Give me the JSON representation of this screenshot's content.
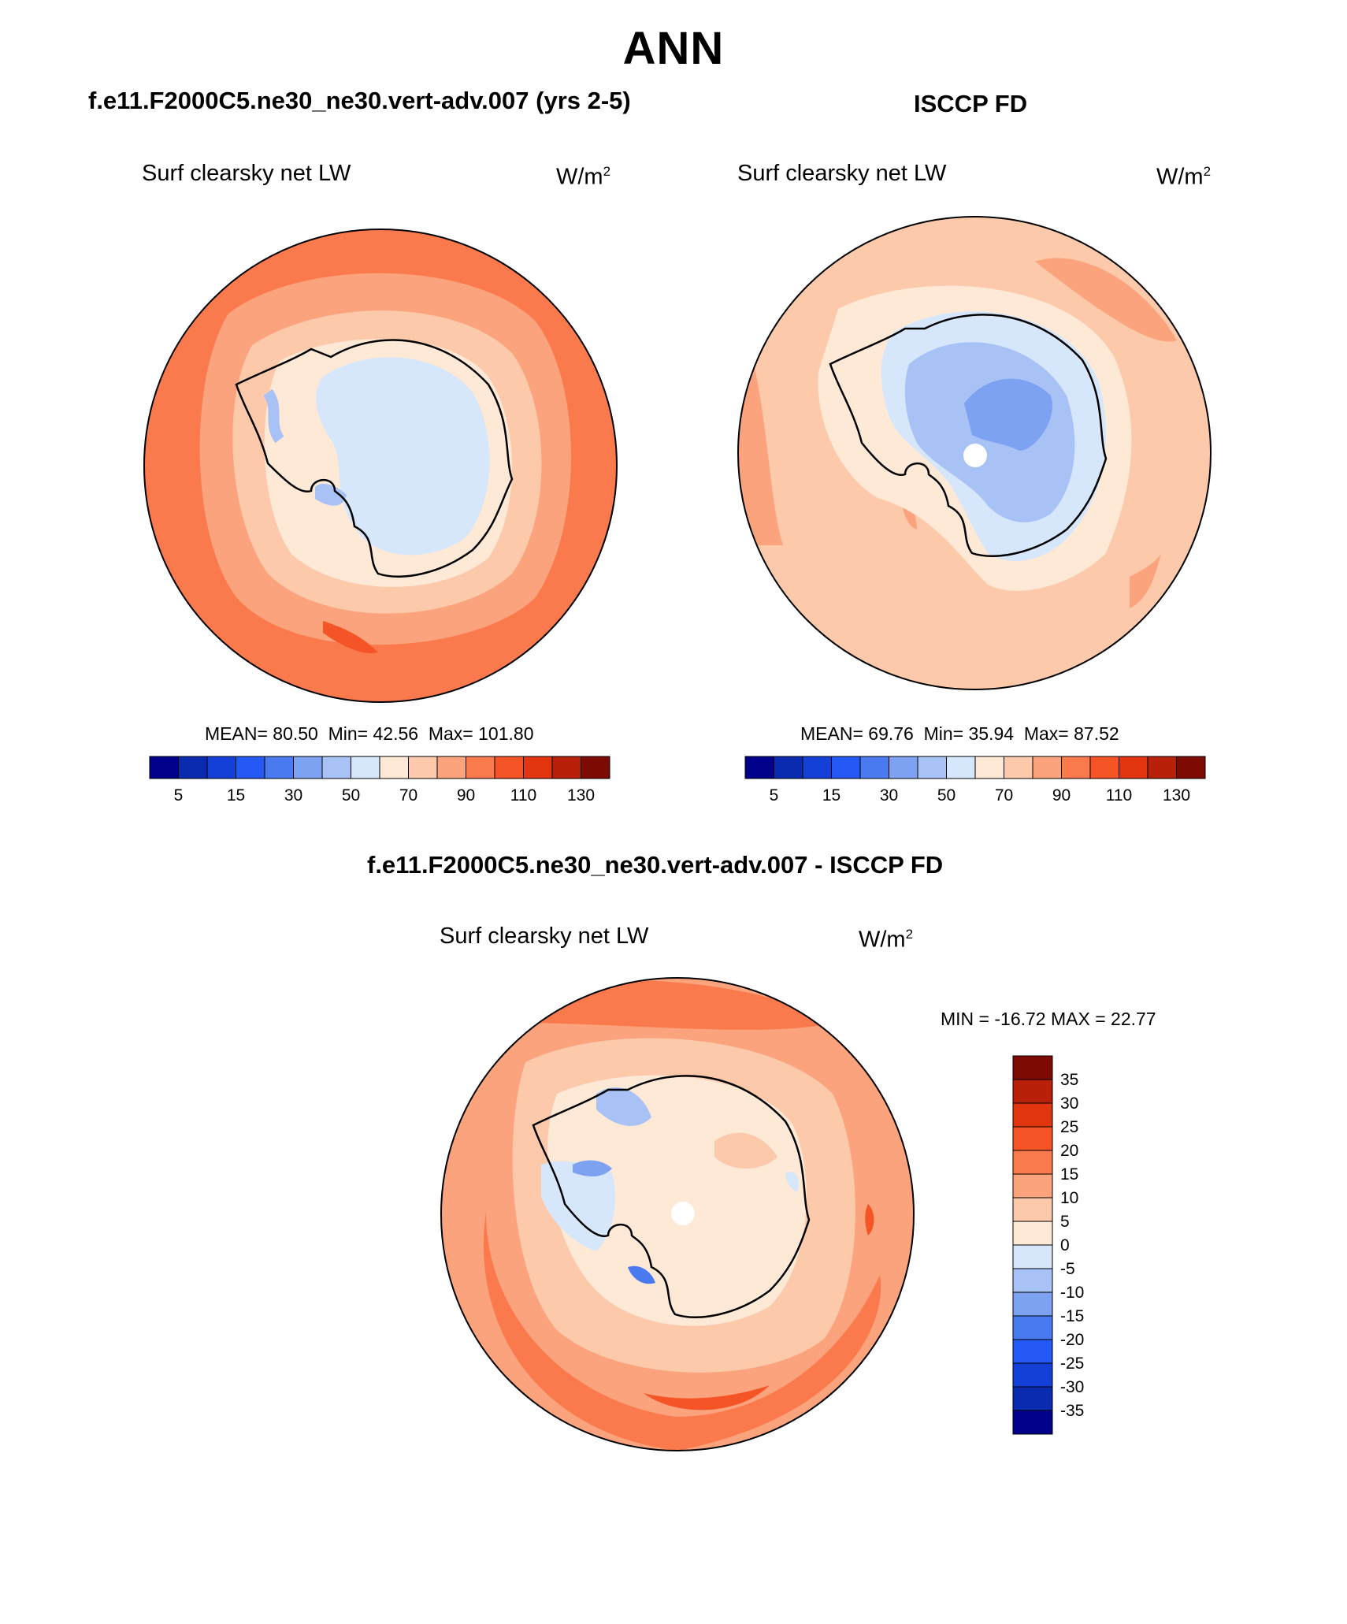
{
  "title": "ANN",
  "panels": {
    "model": {
      "case_title": "f.e11.F2000C5.ne30_ne30.vert-adv.007 (yrs 2-5)",
      "variable": "Surf clearsky net LW",
      "units_base": "W/m",
      "units_exp": "2",
      "mean_label": "MEAN=",
      "mean": "80.50",
      "min_label": "Min=",
      "min": "42.56",
      "max_label": "Max=",
      "max": "101.80"
    },
    "obs": {
      "case_title": "ISCCP FD",
      "variable": "Surf clearsky net LW",
      "units_base": "W/m",
      "units_exp": "2",
      "mean_label": "MEAN=",
      "mean": "69.76",
      "min_label": "Min=",
      "min": "35.94",
      "max_label": "Max=",
      "max": "87.52"
    },
    "diff": {
      "case_title": "f.e11.F2000C5.ne30_ne30.vert-adv.007 - ISCCP FD",
      "variable": "Surf clearsky net LW",
      "units_base": "W/m",
      "units_exp": "2",
      "minmax_text": "MIN = -16.72 MAX =  22.77"
    }
  },
  "colorbars": {
    "main_colors": [
      "#00008b",
      "#0a2bb0",
      "#1540d8",
      "#2459f5",
      "#4a7af0",
      "#7ea2f2",
      "#a9c2f5",
      "#d6e7fb",
      "#fde9d6",
      "#fcc9ab",
      "#fba37c",
      "#fa7a4d",
      "#f55426",
      "#e0350f",
      "#b82009",
      "#7d0a03"
    ],
    "main_ticks": [
      "5",
      "15",
      "30",
      "50",
      "70",
      "90",
      "110",
      "130"
    ],
    "diff_colors": [
      "#00008b",
      "#0a2bb0",
      "#1540d8",
      "#2459f5",
      "#4a7af0",
      "#7ea2f2",
      "#a9c2f5",
      "#d6e7fb",
      "#fde9d6",
      "#fcc9ab",
      "#fba37c",
      "#fa7a4d",
      "#f55426",
      "#e0350f",
      "#b82009",
      "#7d0a03"
    ],
    "diff_ticks": [
      "35",
      "30",
      "25",
      "20",
      "15",
      "10",
      "5",
      "0",
      "-5",
      "-10",
      "-15",
      "-20",
      "-25",
      "-30",
      "-35"
    ]
  }
}
